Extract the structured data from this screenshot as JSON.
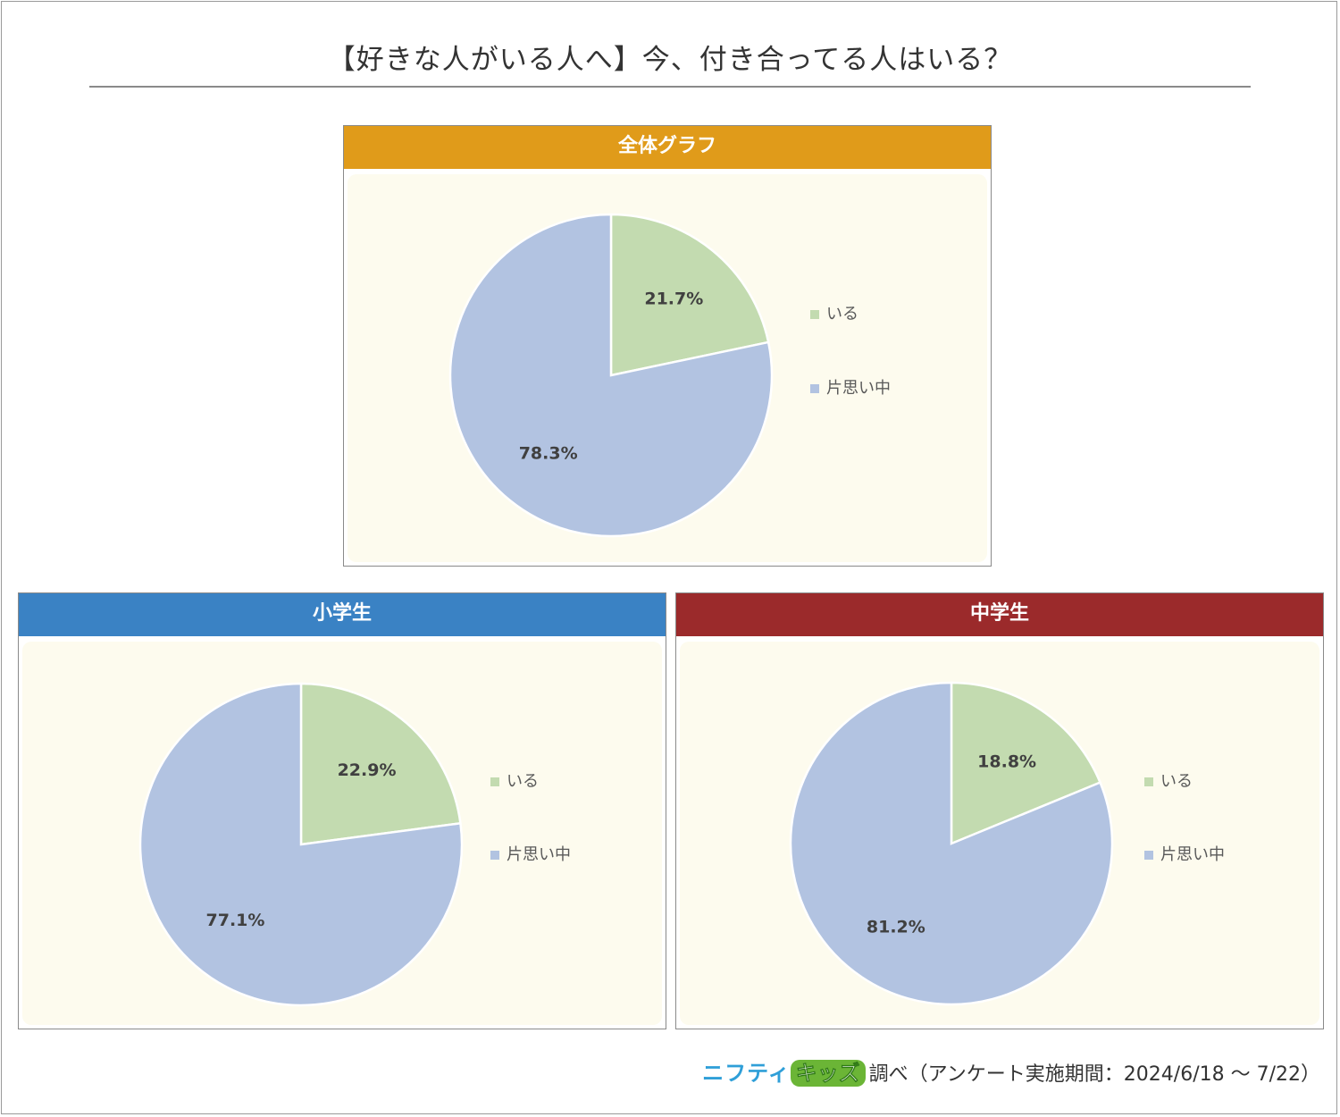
{
  "title": "【好きな人がいる人へ】今、付き合ってる人はいる？",
  "colors": {
    "yes": "#c3dbb0",
    "no": "#b2c3e1",
    "overall_header": "#e09b1a",
    "elementary_header": "#3a82c4",
    "junior_header": "#9b2a2b",
    "panel_bg": "#fdfbee"
  },
  "chart_data": [
    {
      "type": "pie",
      "title": "全体グラフ",
      "categories": [
        "いる",
        "片思い中"
      ],
      "values": [
        21.7,
        78.3
      ],
      "labels": [
        "21.7%",
        "78.3%"
      ],
      "legend_position": "right"
    },
    {
      "type": "pie",
      "title": "小学生",
      "categories": [
        "いる",
        "片思い中"
      ],
      "values": [
        22.9,
        77.1
      ],
      "labels": [
        "22.9%",
        "77.1%"
      ],
      "legend_position": "right"
    },
    {
      "type": "pie",
      "title": "中学生",
      "categories": [
        "いる",
        "片思い中"
      ],
      "values": [
        18.8,
        81.2
      ],
      "labels": [
        "18.8%",
        "81.2%"
      ],
      "legend_position": "right"
    }
  ],
  "footer": {
    "logo_part1": "ニフティ",
    "logo_part2": "キッズ",
    "text": "調べ（アンケート実施期間：2024/6/18 ～ 7/22）"
  }
}
